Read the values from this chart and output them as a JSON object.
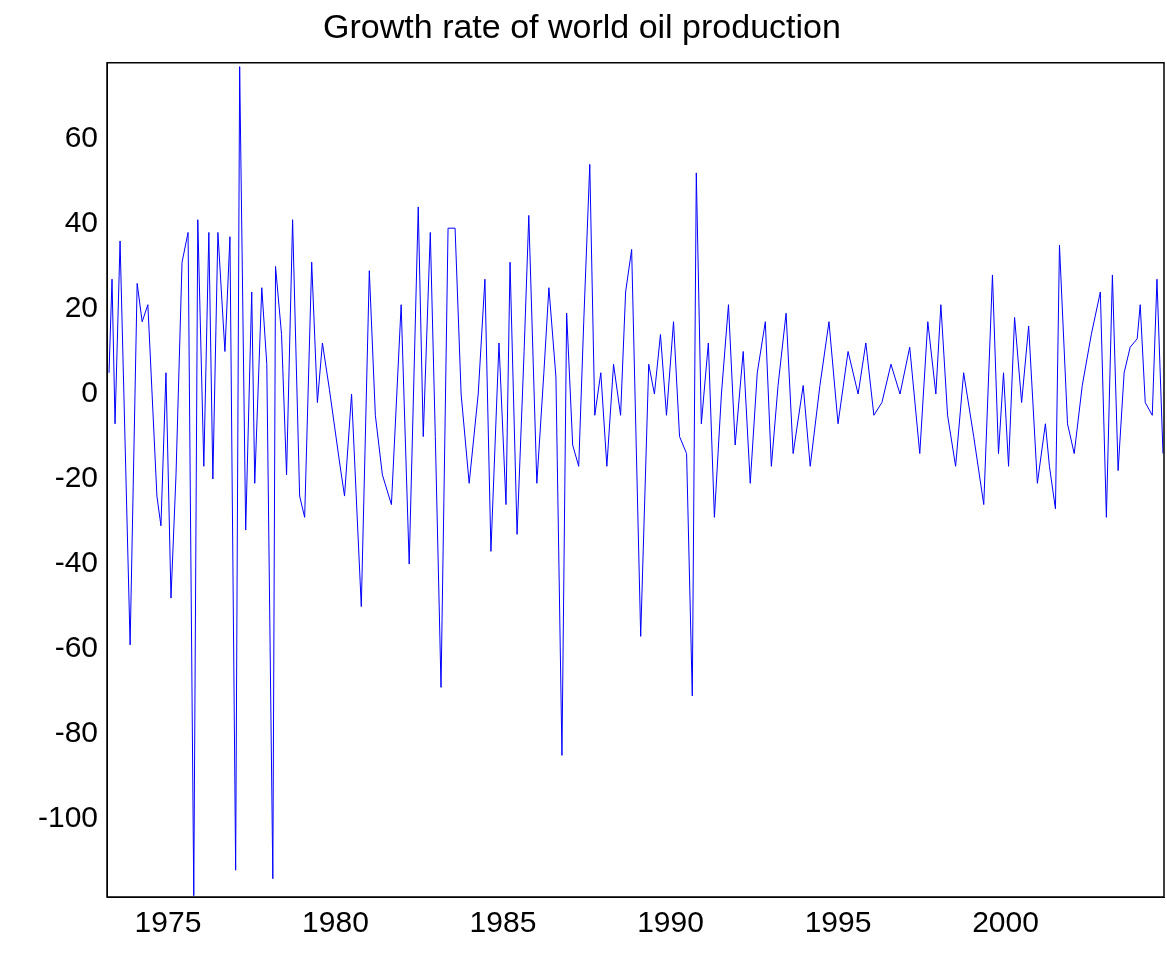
{
  "chart_data": {
    "type": "line",
    "title": "Growth rate of world oil production",
    "xlim": [
      1973.18,
      2004.73
    ],
    "xticks": [
      1975,
      1980,
      1985,
      1990,
      1995,
      2000
    ],
    "ylim": [
      -118.3,
      77.9
    ],
    "yticks": [
      -100,
      -80,
      -60,
      -40,
      -20,
      0,
      20,
      40,
      60
    ],
    "series": [
      {
        "color": "#0000ff",
        "x": [
          1973.24,
          1973.33,
          1973.42,
          1973.57,
          1973.87,
          1974.08,
          1974.23,
          1974.4,
          1974.67,
          1974.79,
          1974.94,
          1975.09,
          1975.24,
          1975.42,
          1975.6,
          1975.77,
          1975.89,
          1976.07,
          1976.22,
          1976.34,
          1976.49,
          1976.7,
          1976.85,
          1977.02,
          1977.14,
          1977.32,
          1977.5,
          1977.59,
          1977.8,
          1977.95,
          1978.13,
          1978.21,
          1978.39,
          1978.54,
          1978.72,
          1978.93,
          1979.08,
          1979.29,
          1979.46,
          1979.61,
          1979.82,
          1980.12,
          1980.27,
          1980.48,
          1980.77,
          1981.01,
          1981.19,
          1981.4,
          1981.67,
          1981.96,
          1982.2,
          1982.47,
          1982.62,
          1982.83,
          1982.98,
          1983.15,
          1983.36,
          1983.57,
          1983.75,
          1983.99,
          1984.26,
          1984.46,
          1984.64,
          1984.88,
          1985.09,
          1985.21,
          1985.42,
          1985.63,
          1985.77,
          1986.01,
          1986.22,
          1986.37,
          1986.58,
          1986.76,
          1986.9,
          1987.08,
          1987.26,
          1987.41,
          1987.59,
          1987.74,
          1987.92,
          1988.1,
          1988.3,
          1988.51,
          1988.66,
          1988.84,
          1989.11,
          1989.35,
          1989.52,
          1989.7,
          1989.88,
          1990.09,
          1990.27,
          1990.48,
          1990.65,
          1990.77,
          1990.92,
          1991.13,
          1991.31,
          1991.52,
          1991.73,
          1991.93,
          1992.17,
          1992.38,
          1992.59,
          1992.83,
          1993.01,
          1993.21,
          1993.45,
          1993.66,
          1993.96,
          1994.17,
          1994.46,
          1994.73,
          1995.0,
          1995.3,
          1995.6,
          1995.83,
          1996.07,
          1996.31,
          1996.58,
          1996.85,
          1997.14,
          1997.44,
          1997.68,
          1997.92,
          1998.07,
          1998.27,
          1998.51,
          1998.75,
          1999.05,
          1999.35,
          1999.61,
          1999.79,
          1999.94,
          2000.09,
          2000.27,
          2000.48,
          2000.69,
          2000.95,
          2001.19,
          2001.31,
          2001.49,
          2001.61,
          2001.85,
          2002.05,
          2002.29,
          2002.56,
          2002.83,
          2003.01,
          2003.19,
          2003.36,
          2003.54,
          2003.72,
          2003.93,
          2004.02,
          2004.17,
          2004.38,
          2004.52,
          2004.7
        ],
        "values": [
          5,
          27,
          -7,
          36,
          -59,
          26,
          17,
          21,
          -24,
          -31,
          5,
          -48,
          -19,
          31,
          38,
          -118,
          41,
          -17,
          38,
          -20,
          38,
          10,
          37,
          -112,
          77,
          -32,
          24,
          -21,
          25,
          7,
          -114,
          30,
          14,
          -19,
          41,
          -24,
          -29,
          31,
          -2,
          12,
          1,
          -16,
          -24,
          0,
          -50,
          29,
          -5,
          -19,
          -26,
          21,
          -40,
          44,
          -10,
          38,
          -10,
          -69,
          39,
          39,
          0,
          -21,
          0,
          27,
          -37,
          12,
          -26,
          31,
          -33,
          10,
          42,
          -21,
          5,
          25,
          4,
          -85,
          19,
          -12,
          -17,
          17,
          54,
          -5,
          5,
          -17,
          7,
          -5,
          24,
          34,
          -57,
          7,
          0,
          14,
          -5,
          17,
          -10,
          -14,
          -71,
          52,
          -7,
          12,
          -29,
          0,
          21,
          -12,
          10,
          -21,
          5,
          17,
          -17,
          2,
          19,
          -14,
          2,
          -17,
          2,
          17,
          -7,
          10,
          0,
          12,
          -5,
          -2,
          7,
          0,
          11,
          -14,
          17,
          0,
          21,
          -5,
          -17,
          5,
          -10,
          -26,
          28,
          -14,
          5,
          -17,
          18,
          -2,
          16,
          -21,
          -7,
          -17,
          -27,
          35,
          -7,
          -14,
          2,
          14,
          24,
          -29,
          28,
          -18,
          5,
          11,
          13,
          21,
          -2,
          -5,
          27,
          -14
        ]
      }
    ]
  }
}
